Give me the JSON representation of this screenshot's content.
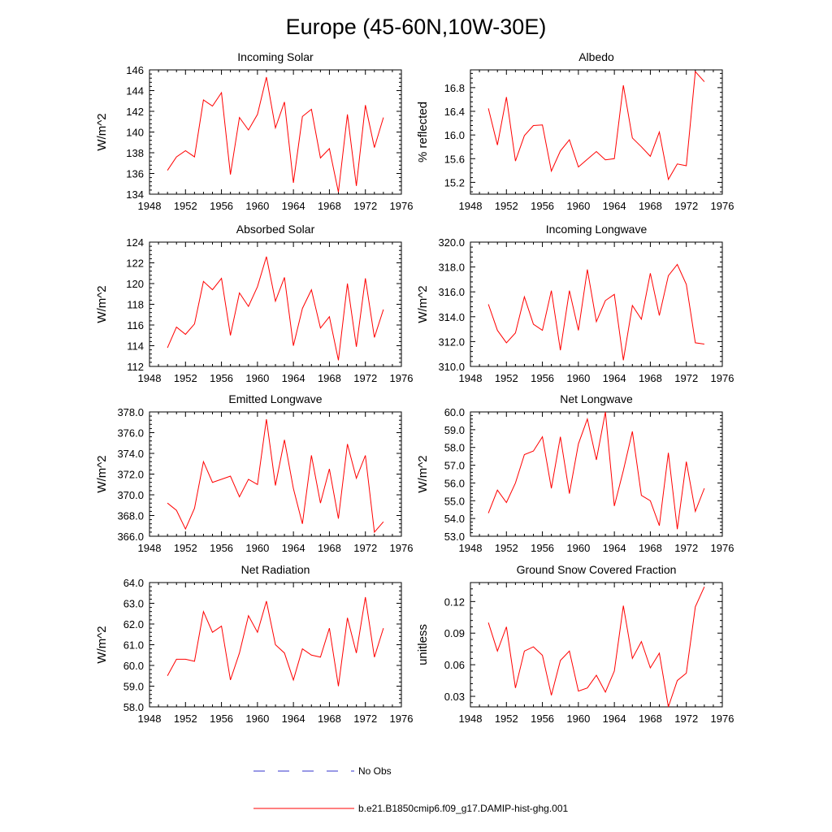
{
  "figure": {
    "title": "Europe (45-60N,10W-30E)"
  },
  "colors": {
    "model_line": "#ff0000",
    "obs_line": "#3333cc",
    "axis": "#000000"
  },
  "legend": {
    "placement": "bottom-center",
    "entries": [
      {
        "label": "No Obs",
        "style": "dashed",
        "color": "#3333cc"
      },
      {
        "label": "b.e21.B1850cmip6.f09_g17.DAMIP-hist-ghg.001",
        "style": "solid",
        "color": "#ff0000"
      }
    ]
  },
  "chart_data": [
    {
      "type": "line",
      "title": "Incoming Solar",
      "xlabel": "",
      "ylabel": "W/m^2",
      "xlim": [
        1948,
        1976
      ],
      "ylim": [
        134,
        146
      ],
      "xticks": [
        1948,
        1952,
        1956,
        1960,
        1964,
        1968,
        1972,
        1976
      ],
      "xtick_labels": [
        "1948",
        "1952",
        "1956",
        "1960",
        "1964",
        "1968",
        "1972",
        "1976"
      ],
      "yticks": [
        134,
        136,
        138,
        140,
        142,
        144,
        146
      ],
      "ytick_labels": [
        "134",
        "136",
        "138",
        "140",
        "142",
        "144",
        "146"
      ],
      "grid": false,
      "x": [
        1950,
        1951,
        1952,
        1953,
        1954,
        1955,
        1956,
        1957,
        1958,
        1959,
        1960,
        1961,
        1962,
        1963,
        1964,
        1965,
        1966,
        1967,
        1968,
        1969,
        1970,
        1971,
        1972,
        1973,
        1974
      ],
      "series": [
        {
          "name": "b.e21.B1850cmip6.f09_g17.DAMIP-hist-ghg.001",
          "values": [
            136.3,
            137.6,
            138.2,
            137.6,
            143.1,
            142.5,
            143.8,
            135.9,
            141.4,
            140.2,
            141.7,
            145.3,
            140.4,
            142.9,
            135.1,
            141.5,
            142.2,
            137.5,
            138.4,
            134.2,
            141.7,
            134.8,
            142.6,
            138.5,
            141.4
          ]
        }
      ]
    },
    {
      "type": "line",
      "title": "Albedo",
      "xlabel": "",
      "ylabel": "% reflected",
      "xlim": [
        1948,
        1976
      ],
      "ylim": [
        15.0,
        17.1
      ],
      "xticks": [
        1948,
        1952,
        1956,
        1960,
        1964,
        1968,
        1972,
        1976
      ],
      "xtick_labels": [
        "1948",
        "1952",
        "1956",
        "1960",
        "1964",
        "1968",
        "1972",
        "1976"
      ],
      "yticks": [
        15.2,
        15.6,
        16.0,
        16.4,
        16.8
      ],
      "ytick_labels": [
        "15.2",
        "15.6",
        "16.0",
        "16.4",
        "16.8"
      ],
      "grid": false,
      "x": [
        1950,
        1951,
        1952,
        1953,
        1954,
        1955,
        1956,
        1957,
        1958,
        1959,
        1960,
        1961,
        1962,
        1963,
        1964,
        1965,
        1966,
        1967,
        1968,
        1969,
        1970,
        1971,
        1972,
        1973,
        1974
      ],
      "series": [
        {
          "name": "b.e21.B1850cmip6.f09_g17.DAMIP-hist-ghg.001",
          "values": [
            16.45,
            15.83,
            16.64,
            15.56,
            15.99,
            16.16,
            16.17,
            15.39,
            15.73,
            15.92,
            15.46,
            15.59,
            15.72,
            15.58,
            15.6,
            16.84,
            15.95,
            15.8,
            15.64,
            16.05,
            15.25,
            15.51,
            15.48,
            17.07,
            16.9
          ]
        }
      ]
    },
    {
      "type": "line",
      "title": "Absorbed Solar",
      "xlabel": "",
      "ylabel": "W/m^2",
      "xlim": [
        1948,
        1976
      ],
      "ylim": [
        112,
        124
      ],
      "xticks": [
        1948,
        1952,
        1956,
        1960,
        1964,
        1968,
        1972,
        1976
      ],
      "xtick_labels": [
        "1948",
        "1952",
        "1956",
        "1960",
        "1964",
        "1968",
        "1972",
        "1976"
      ],
      "yticks": [
        112,
        114,
        116,
        118,
        120,
        122,
        124
      ],
      "ytick_labels": [
        "112",
        "114",
        "116",
        "118",
        "120",
        "122",
        "124"
      ],
      "grid": false,
      "x": [
        1950,
        1951,
        1952,
        1953,
        1954,
        1955,
        1956,
        1957,
        1958,
        1959,
        1960,
        1961,
        1962,
        1963,
        1964,
        1965,
        1966,
        1967,
        1968,
        1969,
        1970,
        1971,
        1972,
        1973,
        1974
      ],
      "series": [
        {
          "name": "b.e21.B1850cmip6.f09_g17.DAMIP-hist-ghg.001",
          "values": [
            113.8,
            115.8,
            115.1,
            116.1,
            120.2,
            119.4,
            120.5,
            115.0,
            119.1,
            117.8,
            119.7,
            122.6,
            118.3,
            120.6,
            114.0,
            117.6,
            119.4,
            115.7,
            116.8,
            112.6,
            120.0,
            113.9,
            120.5,
            114.8,
            117.5
          ]
        }
      ]
    },
    {
      "type": "line",
      "title": "Incoming Longwave",
      "xlabel": "",
      "ylabel": "W/m^2",
      "xlim": [
        1948,
        1976
      ],
      "ylim": [
        310.0,
        320.0
      ],
      "xticks": [
        1948,
        1952,
        1956,
        1960,
        1964,
        1968,
        1972,
        1976
      ],
      "xtick_labels": [
        "1948",
        "1952",
        "1956",
        "1960",
        "1964",
        "1968",
        "1972",
        "1976"
      ],
      "yticks": [
        310,
        312,
        314,
        316,
        318,
        320
      ],
      "ytick_labels": [
        "310.0",
        "312.0",
        "314.0",
        "316.0",
        "318.0",
        "320.0"
      ],
      "grid": false,
      "x": [
        1950,
        1951,
        1952,
        1953,
        1954,
        1955,
        1956,
        1957,
        1958,
        1959,
        1960,
        1961,
        1962,
        1963,
        1964,
        1965,
        1966,
        1967,
        1968,
        1969,
        1970,
        1971,
        1972,
        1973,
        1974
      ],
      "series": [
        {
          "name": "b.e21.B1850cmip6.f09_g17.DAMIP-hist-ghg.001",
          "values": [
            315.0,
            312.9,
            311.9,
            312.7,
            315.6,
            313.4,
            312.9,
            316.1,
            311.3,
            316.1,
            312.9,
            317.8,
            313.6,
            315.3,
            315.8,
            310.5,
            314.9,
            313.8,
            317.5,
            314.1,
            317.3,
            318.2,
            316.6,
            311.9,
            311.8
          ]
        }
      ]
    },
    {
      "type": "line",
      "title": "Emitted Longwave",
      "xlabel": "",
      "ylabel": "W/m^2",
      "xlim": [
        1948,
        1976
      ],
      "ylim": [
        366.0,
        378.0
      ],
      "xticks": [
        1948,
        1952,
        1956,
        1960,
        1964,
        1968,
        1972,
        1976
      ],
      "xtick_labels": [
        "1948",
        "1952",
        "1956",
        "1960",
        "1964",
        "1968",
        "1972",
        "1976"
      ],
      "yticks": [
        366,
        368,
        370,
        372,
        374,
        376,
        378
      ],
      "ytick_labels": [
        "366.0",
        "368.0",
        "370.0",
        "372.0",
        "374.0",
        "376.0",
        "378.0"
      ],
      "grid": false,
      "x": [
        1950,
        1951,
        1952,
        1953,
        1954,
        1955,
        1956,
        1957,
        1958,
        1959,
        1960,
        1961,
        1962,
        1963,
        1964,
        1965,
        1966,
        1967,
        1968,
        1969,
        1970,
        1971,
        1972,
        1973,
        1974
      ],
      "series": [
        {
          "name": "b.e21.B1850cmip6.f09_g17.DAMIP-hist-ghg.001",
          "values": [
            369.2,
            368.5,
            366.7,
            368.7,
            373.2,
            371.2,
            371.5,
            371.8,
            369.8,
            371.5,
            371.0,
            377.3,
            370.9,
            375.3,
            370.6,
            367.2,
            373.8,
            369.2,
            372.5,
            367.7,
            374.9,
            371.6,
            373.8,
            366.4,
            367.4
          ]
        }
      ]
    },
    {
      "type": "line",
      "title": "Net Longwave",
      "xlabel": "",
      "ylabel": "W/m^2",
      "xlim": [
        1948,
        1976
      ],
      "ylim": [
        53.0,
        60.0
      ],
      "xticks": [
        1948,
        1952,
        1956,
        1960,
        1964,
        1968,
        1972,
        1976
      ],
      "xtick_labels": [
        "1948",
        "1952",
        "1956",
        "1960",
        "1964",
        "1968",
        "1972",
        "1976"
      ],
      "yticks": [
        53,
        54,
        55,
        56,
        57,
        58,
        59,
        60
      ],
      "ytick_labels": [
        "53.0",
        "54.0",
        "55.0",
        "56.0",
        "57.0",
        "58.0",
        "59.0",
        "60.0"
      ],
      "grid": false,
      "x": [
        1950,
        1951,
        1952,
        1953,
        1954,
        1955,
        1956,
        1957,
        1958,
        1959,
        1960,
        1961,
        1962,
        1963,
        1964,
        1965,
        1966,
        1967,
        1968,
        1969,
        1970,
        1971,
        1972,
        1973,
        1974
      ],
      "series": [
        {
          "name": "b.e21.B1850cmip6.f09_g17.DAMIP-hist-ghg.001",
          "values": [
            54.3,
            55.6,
            54.9,
            56.0,
            57.6,
            57.8,
            58.6,
            55.7,
            58.6,
            55.4,
            58.2,
            59.6,
            57.3,
            60.0,
            54.7,
            56.7,
            58.9,
            55.3,
            55.0,
            53.6,
            57.7,
            53.4,
            57.2,
            54.4,
            55.7
          ]
        }
      ]
    },
    {
      "type": "line",
      "title": "Net Radiation",
      "xlabel": "",
      "ylabel": "W/m^2",
      "xlim": [
        1948,
        1976
      ],
      "ylim": [
        58.0,
        64.0
      ],
      "xticks": [
        1948,
        1952,
        1956,
        1960,
        1964,
        1968,
        1972,
        1976
      ],
      "xtick_labels": [
        "1948",
        "1952",
        "1956",
        "1960",
        "1964",
        "1968",
        "1972",
        "1976"
      ],
      "yticks": [
        58,
        59,
        60,
        61,
        62,
        63,
        64
      ],
      "ytick_labels": [
        "58.0",
        "59.0",
        "60.0",
        "61.0",
        "62.0",
        "63.0",
        "64.0"
      ],
      "grid": false,
      "x": [
        1950,
        1951,
        1952,
        1953,
        1954,
        1955,
        1956,
        1957,
        1958,
        1959,
        1960,
        1961,
        1962,
        1963,
        1964,
        1965,
        1966,
        1967,
        1968,
        1969,
        1970,
        1971,
        1972,
        1973,
        1974
      ],
      "series": [
        {
          "name": "b.e21.B1850cmip6.f09_g17.DAMIP-hist-ghg.001",
          "values": [
            59.5,
            60.3,
            60.3,
            60.2,
            62.6,
            61.6,
            61.9,
            59.3,
            60.6,
            62.4,
            61.6,
            63.1,
            61.0,
            60.6,
            59.3,
            60.8,
            60.5,
            60.4,
            61.8,
            59.0,
            62.3,
            60.6,
            63.3,
            60.4,
            61.8
          ]
        }
      ]
    },
    {
      "type": "line",
      "title": "Ground Snow Covered Fraction",
      "xlabel": "",
      "ylabel": "unitless",
      "xlim": [
        1948,
        1976
      ],
      "ylim": [
        0.02,
        0.138
      ],
      "xticks": [
        1948,
        1952,
        1956,
        1960,
        1964,
        1968,
        1972,
        1976
      ],
      "xtick_labels": [
        "1948",
        "1952",
        "1956",
        "1960",
        "1964",
        "1968",
        "1972",
        "1976"
      ],
      "yticks": [
        0.03,
        0.06,
        0.09,
        0.12
      ],
      "ytick_labels": [
        "0.03",
        "0.06",
        "0.09",
        "0.12"
      ],
      "grid": false,
      "x": [
        1950,
        1951,
        1952,
        1953,
        1954,
        1955,
        1956,
        1957,
        1958,
        1959,
        1960,
        1961,
        1962,
        1963,
        1964,
        1965,
        1966,
        1967,
        1968,
        1969,
        1970,
        1971,
        1972,
        1973,
        1974
      ],
      "series": [
        {
          "name": "b.e21.B1850cmip6.f09_g17.DAMIP-hist-ghg.001",
          "values": [
            0.1,
            0.073,
            0.096,
            0.038,
            0.073,
            0.077,
            0.069,
            0.031,
            0.064,
            0.073,
            0.035,
            0.038,
            0.05,
            0.034,
            0.054,
            0.116,
            0.066,
            0.082,
            0.057,
            0.071,
            0.02,
            0.045,
            0.052,
            0.115,
            0.134
          ]
        }
      ]
    }
  ]
}
